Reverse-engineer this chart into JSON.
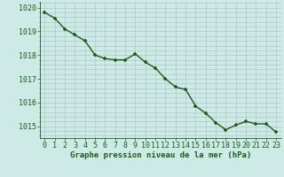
{
  "x": [
    0,
    1,
    2,
    3,
    4,
    5,
    6,
    7,
    8,
    9,
    10,
    11,
    12,
    13,
    14,
    15,
    16,
    17,
    18,
    19,
    20,
    21,
    22,
    23
  ],
  "y": [
    1019.8,
    1019.55,
    1019.1,
    1018.85,
    1018.6,
    1018.0,
    1017.85,
    1017.8,
    1017.8,
    1018.05,
    1017.7,
    1017.45,
    1017.0,
    1016.65,
    1016.55,
    1015.85,
    1015.55,
    1015.15,
    1014.85,
    1015.05,
    1015.2,
    1015.1,
    1015.1,
    1014.75
  ],
  "line_color": "#1a5c1a",
  "marker_color": "#1a5c1a",
  "bg_color": "#ceeae6",
  "grid_color": "#aec8c4",
  "axis_label": "Graphe pression niveau de la mer (hPa)",
  "axis_label_color": "#1a5c1a",
  "tick_color": "#1a5c1a",
  "ylim": [
    1014.5,
    1020.25
  ],
  "yticks": [
    1015,
    1016,
    1017,
    1018,
    1019,
    1020
  ],
  "xticks": [
    0,
    1,
    2,
    3,
    4,
    5,
    6,
    7,
    8,
    9,
    10,
    11,
    12,
    13,
    14,
    15,
    16,
    17,
    18,
    19,
    20,
    21,
    22,
    23
  ],
  "xlabel_fontsize": 6.5,
  "tick_fontsize": 6.0,
  "line_width": 1.0,
  "marker_size": 3.0
}
